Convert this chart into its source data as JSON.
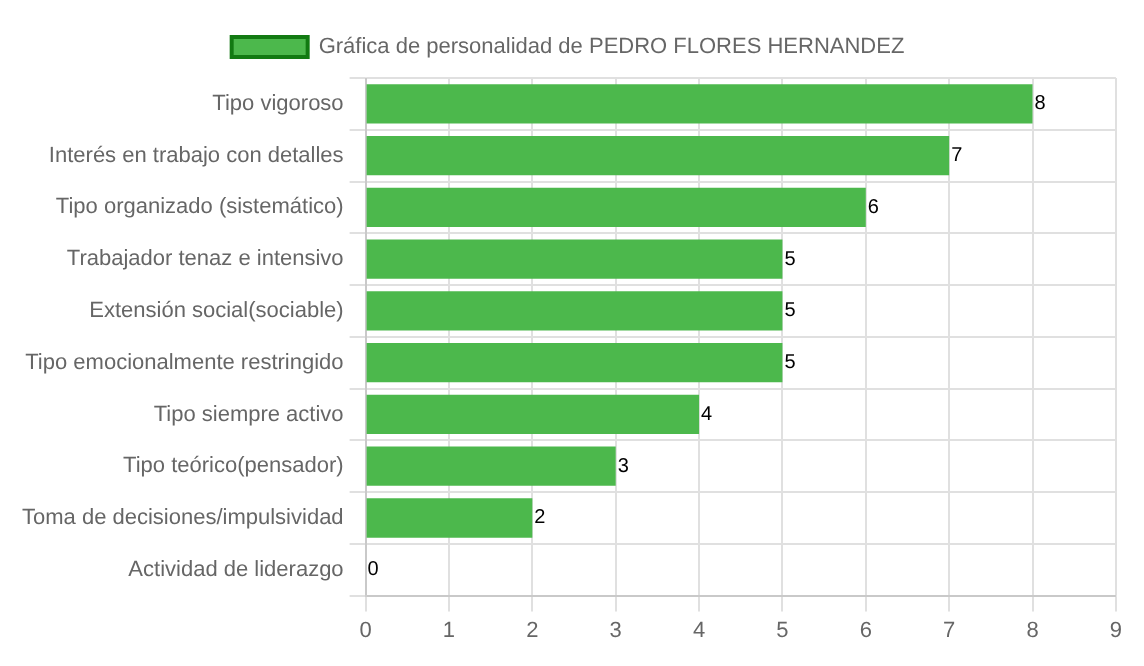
{
  "chart_data": {
    "type": "bar",
    "orientation": "horizontal",
    "categories": [
      "Tipo vigoroso",
      "Interés en trabajo con detalles",
      "Tipo organizado (sistemático)",
      "Trabajador tenaz e intensivo",
      "Extensión social(sociable)",
      "Tipo emocionalmente restringido",
      "Tipo siempre activo",
      "Tipo teórico(pensador)",
      "Toma de decisiones/impulsividad",
      "Actividad de liderazgo"
    ],
    "series": [
      {
        "name": "Gráfica de personalidad de PEDRO FLORES HERNANDEZ",
        "color": "#4cb84c",
        "values": [
          8,
          7,
          6,
          5,
          5,
          5,
          4,
          3,
          2,
          0
        ]
      }
    ],
    "xlim": [
      0,
      9
    ],
    "xticks": [
      0,
      1,
      2,
      3,
      4,
      5,
      6,
      7,
      8,
      9
    ],
    "grid": true,
    "legend": "top",
    "data_labels": true
  }
}
